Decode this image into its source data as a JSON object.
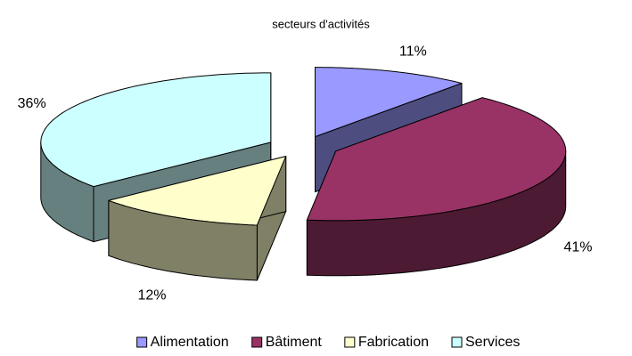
{
  "chart_data": {
    "type": "pie",
    "title": "secteurs d'activités",
    "categories": [
      "Alimentation",
      "Bâtiment",
      "Fabrication",
      "Services"
    ],
    "values": [
      11,
      41,
      12,
      36
    ],
    "value_labels": [
      "11%",
      "41%",
      "12%",
      "36%"
    ],
    "colors": [
      "#9999ff",
      "#993366",
      "#ffffcc",
      "#ccffff"
    ],
    "legend": "bottom"
  }
}
